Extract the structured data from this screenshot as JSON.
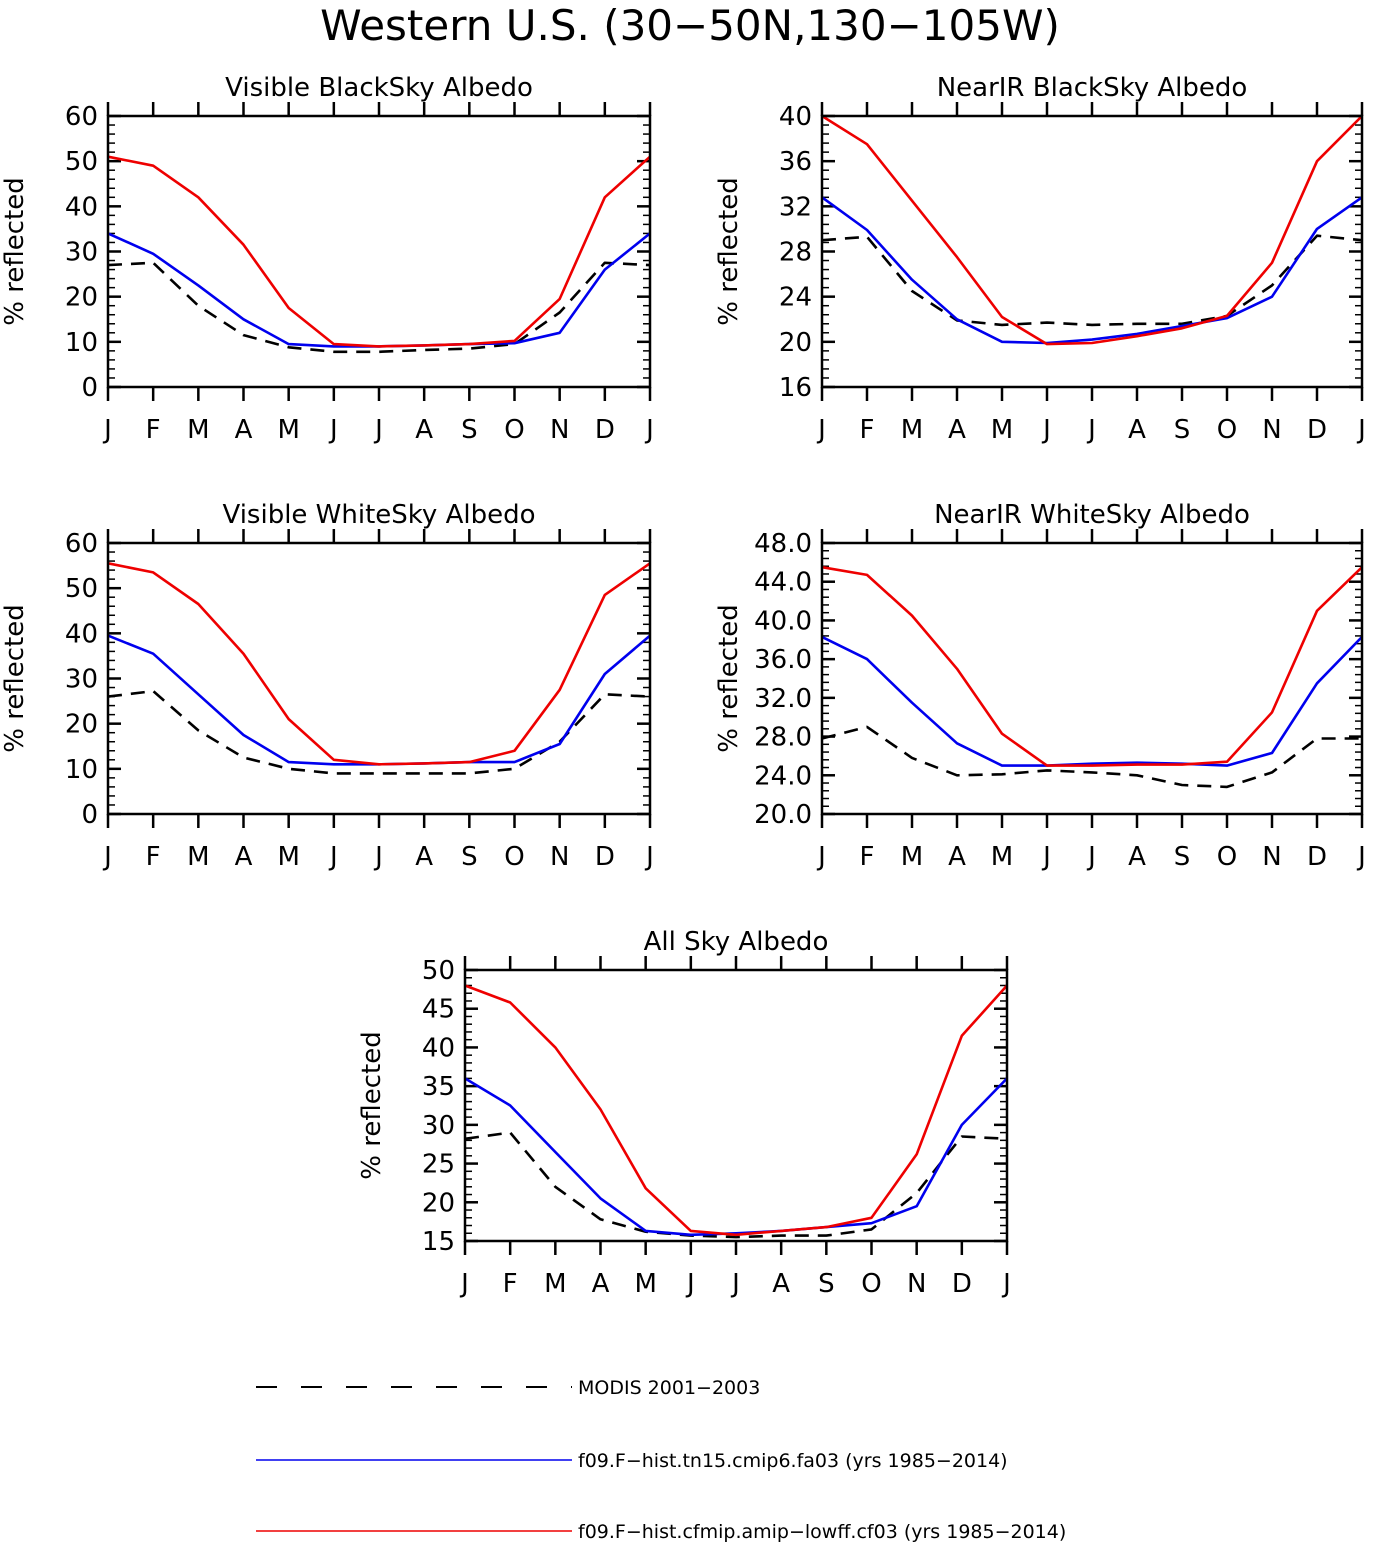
{
  "figure_title": "Western U.S. (30−50N,130−105W)",
  "colors": {
    "modis": "#000000",
    "cmip6": "#0000ee",
    "lowff": "#ee0000"
  },
  "legend": [
    {
      "key": "modis",
      "label": "MODIS 2001−2003",
      "style": "dashed"
    },
    {
      "key": "cmip6",
      "label": "f09.F−hist.tn15.cmip6.fa03 (yrs 1985−2014)",
      "style": "solid"
    },
    {
      "key": "lowff",
      "label": "f09.F−hist.cfmip.amip−lowff.cf03 (yrs 1985−2014)",
      "style": "solid"
    }
  ],
  "chart_data": [
    {
      "type": "line",
      "title": "Visible BlackSky Albedo",
      "ylabel": "% reflected",
      "xlabel": "",
      "categories": [
        "J",
        "F",
        "M",
        "A",
        "M",
        "J",
        "J",
        "A",
        "S",
        "O",
        "N",
        "D",
        "J"
      ],
      "ylim": [
        0,
        60
      ],
      "yticks": [
        "0",
        "10",
        "20",
        "30",
        "40",
        "50",
        "60"
      ],
      "series": [
        {
          "key": "modis",
          "name": "MODIS 2001−2003",
          "values": [
            27,
            27.5,
            18,
            11.5,
            8.8,
            7.8,
            7.8,
            8.2,
            8.5,
            9.5,
            16.5,
            27.5,
            27
          ]
        },
        {
          "key": "cmip6",
          "name": "f09.F−hist.tn15.cmip6.fa03 (yrs 1985−2014)",
          "values": [
            34,
            29.5,
            22.5,
            15,
            9.5,
            9,
            9,
            9.2,
            9.5,
            9.7,
            12,
            26,
            34
          ]
        },
        {
          "key": "lowff",
          "name": "f09.F−hist.cfmip.amip−lowff.cf03 (yrs 1985−2014)",
          "values": [
            51,
            49,
            42,
            31.5,
            17.5,
            9.5,
            9,
            9.2,
            9.5,
            10.2,
            19.5,
            42,
            51
          ]
        }
      ]
    },
    {
      "type": "line",
      "title": "NearIR BlackSky Albedo",
      "ylabel": "% reflected",
      "xlabel": "",
      "categories": [
        "J",
        "F",
        "M",
        "A",
        "M",
        "J",
        "J",
        "A",
        "S",
        "O",
        "N",
        "D",
        "J"
      ],
      "ylim": [
        16,
        40
      ],
      "yticks": [
        "16",
        "20",
        "24",
        "28",
        "32",
        "36",
        "40"
      ],
      "series": [
        {
          "key": "modis",
          "name": "MODIS 2001−2003",
          "values": [
            29,
            29.3,
            24.5,
            21.9,
            21.5,
            21.7,
            21.5,
            21.6,
            21.6,
            22.3,
            25,
            29.4,
            29
          ]
        },
        {
          "key": "cmip6",
          "name": "f09.F−hist.tn15.cmip6.fa03 (yrs 1985−2014)",
          "values": [
            32.8,
            29.9,
            25.5,
            22,
            20,
            19.9,
            20.2,
            20.7,
            21.4,
            22.1,
            24,
            30,
            32.8
          ]
        },
        {
          "key": "lowff",
          "name": "f09.F−hist.cfmip.amip−lowff.cf03 (yrs 1985−2014)",
          "values": [
            40,
            37.5,
            32.5,
            27.5,
            22.2,
            19.8,
            19.9,
            20.5,
            21.2,
            22.3,
            27,
            36,
            40
          ]
        }
      ]
    },
    {
      "type": "line",
      "title": "Visible WhiteSky Albedo",
      "ylabel": "% reflected",
      "xlabel": "",
      "categories": [
        "J",
        "F",
        "M",
        "A",
        "M",
        "J",
        "J",
        "A",
        "S",
        "O",
        "N",
        "D",
        "J"
      ],
      "ylim": [
        0,
        60
      ],
      "yticks": [
        "0",
        "10",
        "20",
        "30",
        "40",
        "50",
        "60"
      ],
      "series": [
        {
          "key": "modis",
          "name": "MODIS 2001−2003",
          "values": [
            26,
            27.2,
            18.5,
            12.5,
            10,
            9,
            9,
            9,
            9,
            10,
            16,
            26.5,
            26
          ]
        },
        {
          "key": "cmip6",
          "name": "f09.F−hist.tn15.cmip6.fa03 (yrs 1985−2014)",
          "values": [
            39.5,
            35.5,
            26.5,
            17.5,
            11.5,
            11,
            11,
            11.2,
            11.5,
            11.5,
            15.5,
            31,
            39.5
          ]
        },
        {
          "key": "lowff",
          "name": "f09.F−hist.cfmip.amip−lowff.cf03 (yrs 1985−2014)",
          "values": [
            55.5,
            53.5,
            46.5,
            35.5,
            21,
            12,
            11,
            11.2,
            11.5,
            14,
            27.5,
            48.5,
            55.5
          ]
        }
      ]
    },
    {
      "type": "line",
      "title": "NearIR WhiteSky Albedo",
      "ylabel": "% reflected",
      "xlabel": "",
      "categories": [
        "J",
        "F",
        "M",
        "A",
        "M",
        "J",
        "J",
        "A",
        "S",
        "O",
        "N",
        "D",
        "J"
      ],
      "ylim": [
        20,
        48
      ],
      "yticks": [
        "20.0",
        "24.0",
        "28.0",
        "32.0",
        "36.0",
        "40.0",
        "44.0",
        "48.0"
      ],
      "series": [
        {
          "key": "modis",
          "name": "MODIS 2001−2003",
          "values": [
            27.8,
            29,
            25.8,
            24,
            24.1,
            24.5,
            24.3,
            24,
            23,
            22.8,
            24.3,
            27.8,
            27.8
          ]
        },
        {
          "key": "cmip6",
          "name": "f09.F−hist.tn15.cmip6.fa03 (yrs 1985−2014)",
          "values": [
            38.3,
            36,
            31.5,
            27.3,
            25,
            25,
            25.2,
            25.3,
            25.2,
            25,
            26.3,
            33.5,
            38.3
          ]
        },
        {
          "key": "lowff",
          "name": "f09.F−hist.cfmip.amip−lowff.cf03 (yrs 1985−2014)",
          "values": [
            45.5,
            44.7,
            40.5,
            35,
            28.3,
            25,
            25,
            25.1,
            25.1,
            25.4,
            30.5,
            41,
            45.5
          ]
        }
      ]
    },
    {
      "type": "line",
      "title": "All Sky Albedo",
      "ylabel": "% reflected",
      "xlabel": "",
      "categories": [
        "J",
        "F",
        "M",
        "A",
        "M",
        "J",
        "J",
        "A",
        "S",
        "O",
        "N",
        "D",
        "J"
      ],
      "ylim": [
        15,
        50
      ],
      "yticks": [
        "15",
        "20",
        "25",
        "30",
        "35",
        "40",
        "45",
        "50"
      ],
      "series": [
        {
          "key": "modis",
          "name": "MODIS 2001−2003",
          "values": [
            28.2,
            29,
            22,
            17.8,
            16.2,
            15.7,
            15.5,
            15.7,
            15.7,
            16.5,
            21.2,
            28.5,
            28.2
          ]
        },
        {
          "key": "cmip6",
          "name": "f09.F−hist.tn15.cmip6.fa03 (yrs 1985−2014)",
          "values": [
            36,
            32.5,
            26.5,
            20.5,
            16.3,
            15.8,
            16,
            16.3,
            16.8,
            17.3,
            19.5,
            30,
            36
          ]
        },
        {
          "key": "lowff",
          "name": "f09.F−hist.cfmip.amip−lowff.cf03 (yrs 1985−2014)",
          "values": [
            48,
            45.8,
            40,
            32,
            21.8,
            16.3,
            15.8,
            16.3,
            16.8,
            18,
            26.2,
            41.5,
            48
          ]
        }
      ]
    }
  ]
}
